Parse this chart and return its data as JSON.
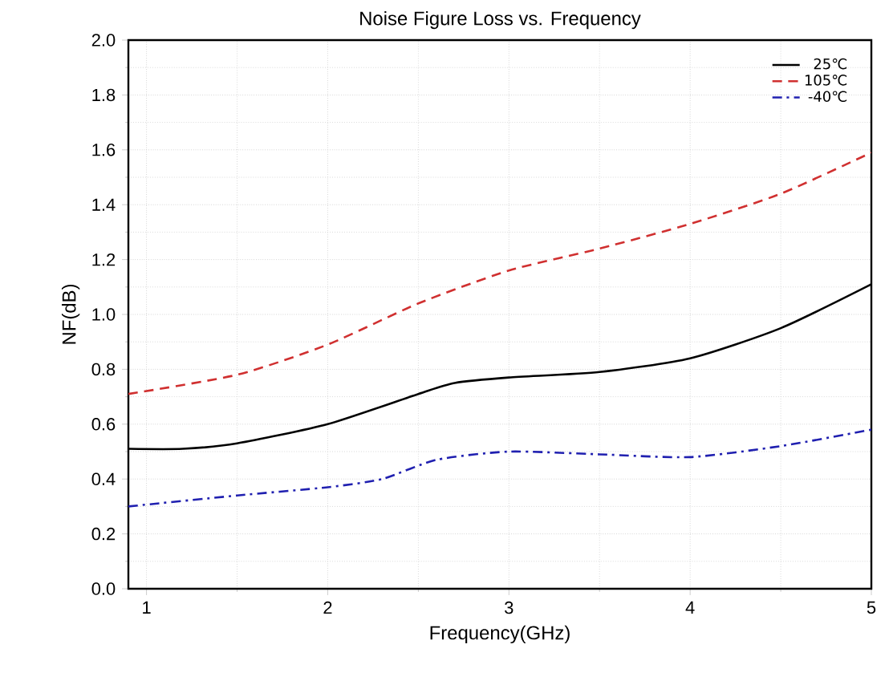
{
  "chart_data": {
    "type": "line",
    "title": "Noise Figure Loss vs. Frequency",
    "xlabel": "Frequency(GHz)",
    "ylabel": "NF(dB)",
    "xlim": [
      0.9,
      5
    ],
    "xticks": [
      1,
      2,
      3,
      4,
      5
    ],
    "ylim": [
      0,
      2
    ],
    "yticks": [
      {
        "value": 0,
        "label": "0.0"
      },
      0.2,
      0.4,
      0.6,
      0.8,
      {
        "value": 1,
        "label": "1.0"
      },
      1.2,
      1.4,
      1.6,
      1.8,
      {
        "value": 2,
        "label": "2.0"
      }
    ],
    "grid": true,
    "legend": "top right",
    "series": [
      {
        "name": "25℃",
        "color": "#000000",
        "line_style": "solid",
        "x": [
          0.9,
          1.2,
          1.5,
          2.0,
          2.5,
          2.7,
          3.0,
          3.5,
          4.0,
          4.5,
          5.0
        ],
        "values": [
          0.51,
          0.51,
          0.53,
          0.6,
          0.71,
          0.75,
          0.77,
          0.79,
          0.84,
          0.95,
          1.11
        ]
      },
      {
        "name": "105℃",
        "color": "#d03030",
        "line_style": "dashed",
        "x": [
          0.9,
          1.5,
          2.0,
          2.5,
          3.0,
          3.5,
          4.0,
          4.5,
          5.0
        ],
        "values": [
          0.71,
          0.78,
          0.89,
          1.04,
          1.16,
          1.24,
          1.33,
          1.44,
          1.59
        ]
      },
      {
        "name": "-40℃",
        "color": "#2020b0",
        "line_style": "dashdot",
        "x": [
          0.9,
          1.5,
          2.0,
          2.3,
          2.6,
          3.0,
          3.5,
          4.0,
          4.5,
          5.0
        ],
        "values": [
          0.3,
          0.34,
          0.37,
          0.4,
          0.47,
          0.5,
          0.49,
          0.48,
          0.52,
          0.58
        ]
      }
    ]
  }
}
